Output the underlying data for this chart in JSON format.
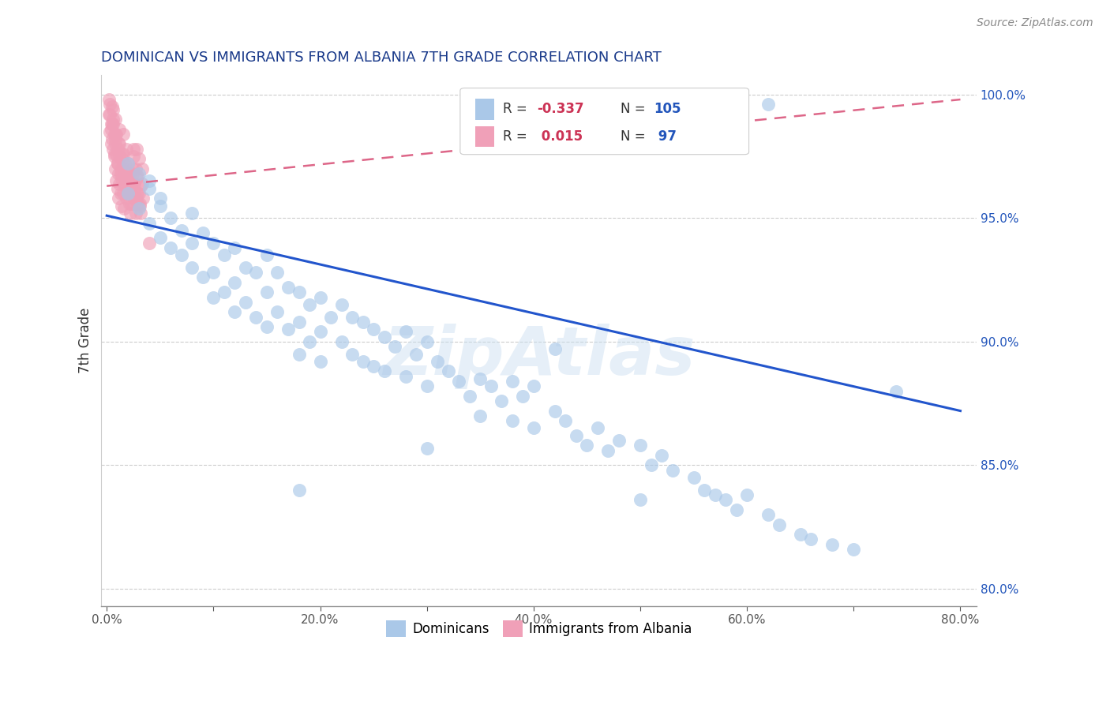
{
  "title": "DOMINICAN VS IMMIGRANTS FROM ALBANIA 7TH GRADE CORRELATION CHART",
  "source": "Source: ZipAtlas.com",
  "ylabel": "7th Grade",
  "xlim": [
    -0.005,
    0.815
  ],
  "ylim": [
    0.793,
    1.008
  ],
  "yticks": [
    0.8,
    0.85,
    0.9,
    0.95,
    1.0
  ],
  "xticks": [
    0.0,
    0.1,
    0.2,
    0.3,
    0.4,
    0.5,
    0.6,
    0.7,
    0.8
  ],
  "xtick_labels": [
    "0.0%",
    "",
    "20.0%",
    "",
    "40.0%",
    "",
    "60.0%",
    "",
    "80.0%"
  ],
  "r1": "-0.337",
  "n1": "105",
  "r2": "0.015",
  "n2": "97",
  "blue_color": "#aac8e8",
  "pink_color": "#f0a0b8",
  "blue_line_color": "#2255cc",
  "pink_line_color": "#dd6688",
  "title_color": "#1a3a8a",
  "r_color": "#cc3355",
  "n_color": "#2255bb",
  "blue_trendline_x": [
    0.0,
    0.8
  ],
  "blue_trendline_y": [
    0.951,
    0.872
  ],
  "pink_trendline_x": [
    0.0,
    0.8
  ],
  "pink_trendline_y": [
    0.963,
    0.998
  ],
  "blue_x": [
    0.02,
    0.02,
    0.03,
    0.03,
    0.04,
    0.04,
    0.04,
    0.05,
    0.05,
    0.05,
    0.06,
    0.06,
    0.07,
    0.07,
    0.08,
    0.08,
    0.08,
    0.09,
    0.09,
    0.1,
    0.1,
    0.1,
    0.11,
    0.11,
    0.12,
    0.12,
    0.12,
    0.13,
    0.13,
    0.14,
    0.14,
    0.15,
    0.15,
    0.15,
    0.16,
    0.16,
    0.17,
    0.17,
    0.18,
    0.18,
    0.18,
    0.19,
    0.19,
    0.2,
    0.2,
    0.2,
    0.21,
    0.22,
    0.22,
    0.23,
    0.23,
    0.24,
    0.24,
    0.25,
    0.25,
    0.26,
    0.26,
    0.27,
    0.28,
    0.28,
    0.29,
    0.3,
    0.3,
    0.31,
    0.32,
    0.33,
    0.34,
    0.35,
    0.35,
    0.36,
    0.37,
    0.38,
    0.38,
    0.39,
    0.4,
    0.4,
    0.42,
    0.43,
    0.44,
    0.45,
    0.46,
    0.47,
    0.48,
    0.5,
    0.51,
    0.52,
    0.53,
    0.55,
    0.56,
    0.57,
    0.58,
    0.59,
    0.6,
    0.62,
    0.63,
    0.65,
    0.66,
    0.68,
    0.7,
    0.74,
    0.18,
    0.3,
    0.42,
    0.5,
    0.62
  ],
  "blue_y": [
    0.972,
    0.96,
    0.968,
    0.954,
    0.965,
    0.948,
    0.962,
    0.955,
    0.942,
    0.958,
    0.95,
    0.938,
    0.945,
    0.935,
    0.952,
    0.94,
    0.93,
    0.944,
    0.926,
    0.94,
    0.928,
    0.918,
    0.935,
    0.92,
    0.938,
    0.924,
    0.912,
    0.93,
    0.916,
    0.928,
    0.91,
    0.935,
    0.92,
    0.906,
    0.928,
    0.912,
    0.922,
    0.905,
    0.92,
    0.908,
    0.895,
    0.915,
    0.9,
    0.918,
    0.904,
    0.892,
    0.91,
    0.915,
    0.9,
    0.91,
    0.895,
    0.908,
    0.892,
    0.905,
    0.89,
    0.902,
    0.888,
    0.898,
    0.904,
    0.886,
    0.895,
    0.9,
    0.882,
    0.892,
    0.888,
    0.884,
    0.878,
    0.885,
    0.87,
    0.882,
    0.876,
    0.884,
    0.868,
    0.878,
    0.882,
    0.865,
    0.872,
    0.868,
    0.862,
    0.858,
    0.865,
    0.856,
    0.86,
    0.858,
    0.85,
    0.854,
    0.848,
    0.845,
    0.84,
    0.838,
    0.836,
    0.832,
    0.838,
    0.83,
    0.826,
    0.822,
    0.82,
    0.818,
    0.816,
    0.88,
    0.84,
    0.857,
    0.897,
    0.836,
    0.996
  ],
  "pink_x": [
    0.002,
    0.003,
    0.004,
    0.005,
    0.005,
    0.006,
    0.006,
    0.007,
    0.007,
    0.008,
    0.008,
    0.009,
    0.009,
    0.01,
    0.01,
    0.011,
    0.011,
    0.012,
    0.012,
    0.013,
    0.013,
    0.014,
    0.014,
    0.015,
    0.015,
    0.016,
    0.016,
    0.017,
    0.018,
    0.019,
    0.02,
    0.02,
    0.021,
    0.022,
    0.022,
    0.023,
    0.024,
    0.025,
    0.025,
    0.026,
    0.027,
    0.028,
    0.028,
    0.029,
    0.03,
    0.03,
    0.031,
    0.032,
    0.033,
    0.034,
    0.003,
    0.004,
    0.006,
    0.007,
    0.009,
    0.01,
    0.012,
    0.013,
    0.015,
    0.017,
    0.019,
    0.021,
    0.023,
    0.025,
    0.027,
    0.029,
    0.031,
    0.033,
    0.002,
    0.004,
    0.006,
    0.008,
    0.01,
    0.012,
    0.014,
    0.016,
    0.018,
    0.02,
    0.022,
    0.024,
    0.026,
    0.028,
    0.005,
    0.008,
    0.011,
    0.014,
    0.017,
    0.02,
    0.023,
    0.026,
    0.029,
    0.032,
    0.04,
    0.003,
    0.008,
    0.015,
    0.025
  ],
  "pink_y": [
    0.998,
    0.992,
    0.988,
    0.982,
    0.995,
    0.978,
    0.99,
    0.984,
    0.975,
    0.98,
    0.97,
    0.976,
    0.965,
    0.972,
    0.962,
    0.968,
    0.958,
    0.975,
    0.964,
    0.97,
    0.96,
    0.966,
    0.955,
    0.972,
    0.96,
    0.967,
    0.954,
    0.963,
    0.958,
    0.965,
    0.972,
    0.96,
    0.956,
    0.964,
    0.952,
    0.96,
    0.968,
    0.975,
    0.956,
    0.964,
    0.97,
    0.978,
    0.958,
    0.967,
    0.974,
    0.96,
    0.955,
    0.963,
    0.97,
    0.958,
    0.985,
    0.98,
    0.988,
    0.976,
    0.984,
    0.972,
    0.98,
    0.968,
    0.976,
    0.964,
    0.96,
    0.968,
    0.956,
    0.964,
    0.952,
    0.96,
    0.956,
    0.964,
    0.992,
    0.986,
    0.994,
    0.982,
    0.978,
    0.986,
    0.974,
    0.97,
    0.978,
    0.966,
    0.962,
    0.97,
    0.958,
    0.966,
    0.988,
    0.984,
    0.98,
    0.976,
    0.972,
    0.968,
    0.964,
    0.96,
    0.956,
    0.952,
    0.94,
    0.996,
    0.99,
    0.984,
    0.978
  ]
}
